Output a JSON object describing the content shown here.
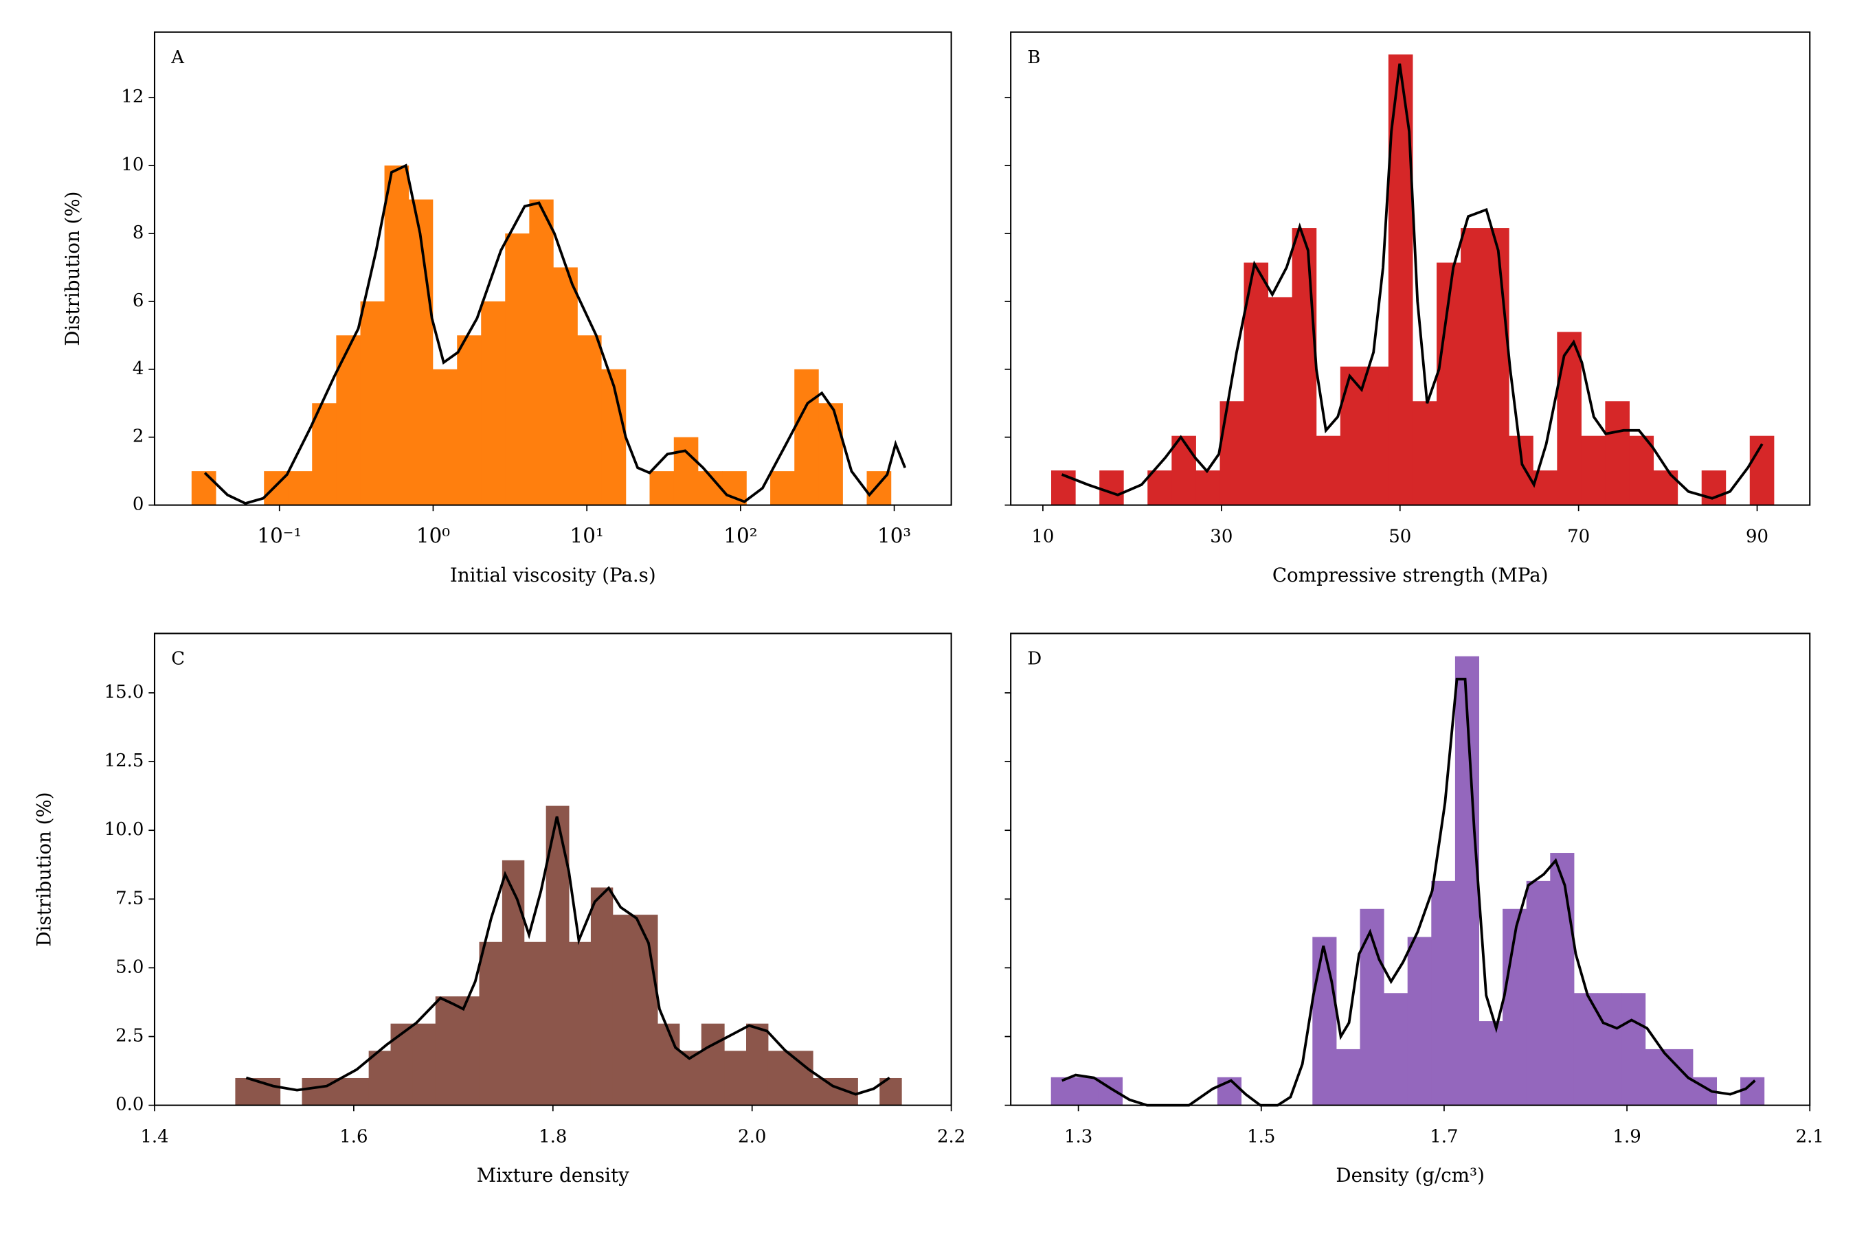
{
  "chart_data": [
    {
      "type": "histogram",
      "panel": "A",
      "xlabel": "Initial viscosity (Pa.s)",
      "ylabel": "Distribution (%)",
      "xscale": "log",
      "color": "#ff7f0e",
      "bins": [
        0.0268,
        0.0385,
        0.0552,
        0.0793,
        0.114,
        0.163,
        0.234,
        0.336,
        0.482,
        0.692,
        0.993,
        1.43,
        2.05,
        2.94,
        4.22,
        6.04,
        8.67,
        12.4,
        17.9,
        25.6,
        36.8,
        52.8,
        75.9,
        109,
        156,
        224,
        321,
        461,
        662,
        951
      ],
      "values": [
        1,
        0,
        0,
        1,
        1,
        3,
        5,
        6,
        10,
        9,
        4,
        5,
        6,
        8,
        9,
        7,
        5,
        4,
        0,
        1,
        2,
        1,
        1,
        0,
        1,
        4,
        3,
        0,
        1
      ],
      "kde": {
        "color": "#000000",
        "x": [
          0.0327,
          0.0459,
          0.06,
          0.0784,
          0.112,
          0.16,
          0.228,
          0.326,
          0.426,
          0.536,
          0.664,
          0.822,
          0.982,
          1.17,
          1.45,
          1.93,
          2.76,
          3.94,
          4.88,
          6.15,
          8.04,
          11.5,
          15.0,
          17.9,
          21.4,
          25.6,
          33.4,
          43.6,
          57.0,
          81.3,
          106,
          139,
          198,
          273,
          338,
          404,
          527,
          689,
          900,
          1020,
          1175
        ],
        "values": [
          0.95,
          0.3,
          0.05,
          0.2,
          0.9,
          2.3,
          3.8,
          5.2,
          7.5,
          9.8,
          10.0,
          8,
          5.5,
          4.2,
          4.5,
          5.5,
          7.5,
          8.8,
          8.9,
          8,
          6.5,
          5,
          3.5,
          2,
          1.1,
          0.95,
          1.5,
          1.6,
          1.1,
          0.3,
          0.1,
          0.5,
          1.8,
          3.0,
          3.3,
          2.8,
          1.0,
          0.3,
          0.9,
          1.8,
          1.1
        ]
      },
      "xlim": [
        0.0154,
        2350
      ],
      "ylim": [
        0,
        13.93
      ],
      "xticks": [
        {
          "value": 0.1,
          "label": "10⁻¹"
        },
        {
          "value": 1,
          "label": "10⁰"
        },
        {
          "value": 10,
          "label": "10¹"
        },
        {
          "value": 100,
          "label": "10²"
        },
        {
          "value": 1000,
          "label": "10³"
        }
      ],
      "yticks": [
        0,
        2,
        4,
        6,
        8,
        10,
        12
      ]
    },
    {
      "type": "histogram",
      "panel": "B",
      "xlabel": "Compressive strength (MPa)",
      "sharey": true,
      "color": "#d62728",
      "bins": [
        10.93,
        13.63,
        16.33,
        19.02,
        21.72,
        24.42,
        27.12,
        29.82,
        32.51,
        35.21,
        37.91,
        40.61,
        43.31,
        46.0,
        48.7,
        51.4,
        54.1,
        56.8,
        59.49,
        62.19,
        64.89,
        67.59,
        70.29,
        72.98,
        75.68,
        78.38,
        81.08,
        83.78,
        86.47,
        89.17,
        91.87
      ],
      "values": [
        1.02,
        0,
        1.02,
        0,
        1.02,
        2.04,
        1.02,
        3.06,
        7.14,
        6.12,
        8.16,
        2.04,
        4.08,
        4.08,
        13.27,
        3.06,
        7.14,
        8.16,
        8.16,
        2.04,
        1.02,
        5.1,
        2.04,
        3.06,
        2.04,
        1.02,
        0,
        1.02,
        0,
        2.04
      ],
      "kde": {
        "color": "#000000",
        "x": [
          12.13,
          15.06,
          18.39,
          21.05,
          23.72,
          25.45,
          27.04,
          28.38,
          29.71,
          31.7,
          33.7,
          35.7,
          37.3,
          38.77,
          39.7,
          40.63,
          41.7,
          43.03,
          44.37,
          45.7,
          47.03,
          48.1,
          49.03,
          49.96,
          51.03,
          51.96,
          53.04,
          54.37,
          55.97,
          57.64,
          59.67,
          61.0,
          62.34,
          63.67,
          65.0,
          66.38,
          68.38,
          69.45,
          70.37,
          71.7,
          73.04,
          75.04,
          76.77,
          78.3,
          80.3,
          82.3,
          84.96,
          86.96,
          88.96,
          90.56
        ],
        "values": [
          0.9,
          0.6,
          0.3,
          0.6,
          1.4,
          2.0,
          1.4,
          1.0,
          1.5,
          4.5,
          7.1,
          6.2,
          7.0,
          8.2,
          7.5,
          4,
          2.2,
          2.6,
          3.8,
          3.4,
          4.5,
          7,
          11,
          13.0,
          11,
          6,
          3,
          4,
          7,
          8.5,
          8.7,
          7.5,
          4,
          1.2,
          0.6,
          1.8,
          4.4,
          4.8,
          4.2,
          2.6,
          2.1,
          2.2,
          2.2,
          1.7,
          0.9,
          0.4,
          0.2,
          0.4,
          1.1,
          1.8
        ]
      },
      "xlim": [
        6.4,
        95.9
      ],
      "ylim": [
        0,
        13.93
      ],
      "xticks": [
        10,
        30,
        50,
        70,
        90
      ],
      "yticks": [
        0,
        2,
        4,
        6,
        8,
        10,
        12
      ]
    },
    {
      "type": "histogram",
      "panel": "C",
      "xlabel": "Mixture density",
      "ylabel": "Distribution (%)",
      "color": "#8c564b",
      "bins": [
        1.481,
        1.503,
        1.526,
        1.548,
        1.57,
        1.592,
        1.615,
        1.637,
        1.659,
        1.682,
        1.704,
        1.726,
        1.749,
        1.771,
        1.793,
        1.816,
        1.838,
        1.86,
        1.882,
        1.905,
        1.927,
        1.949,
        1.972,
        1.994,
        2.016,
        2.039,
        2.061,
        2.083,
        2.106,
        2.128,
        2.15
      ],
      "values": [
        0.99,
        0.99,
        0,
        0.99,
        0.99,
        0.99,
        1.98,
        2.97,
        2.97,
        3.96,
        3.96,
        5.94,
        8.91,
        5.94,
        10.89,
        5.94,
        7.92,
        6.93,
        6.93,
        2.97,
        1.98,
        2.97,
        1.98,
        2.97,
        1.98,
        1.98,
        0.99,
        0.99,
        0,
        0.99
      ],
      "kde": {
        "color": "#000000",
        "x": [
          1.492,
          1.519,
          1.543,
          1.573,
          1.603,
          1.633,
          1.663,
          1.687,
          1.699,
          1.71,
          1.722,
          1.738,
          1.752,
          1.764,
          1.776,
          1.788,
          1.804,
          1.816,
          1.826,
          1.842,
          1.856,
          1.868,
          1.884,
          1.896,
          1.907,
          1.923,
          1.937,
          1.955,
          1.976,
          1.997,
          2.015,
          2.033,
          2.057,
          2.081,
          2.104,
          2.122,
          2.138
        ],
        "values": [
          1.0,
          0.7,
          0.55,
          0.7,
          1.3,
          2.2,
          3.0,
          3.9,
          3.7,
          3.5,
          4.5,
          6.8,
          8.4,
          7.5,
          6.2,
          7.8,
          10.5,
          8.5,
          6.0,
          7.4,
          7.9,
          7.2,
          6.8,
          5.9,
          3.5,
          2.1,
          1.7,
          2.1,
          2.5,
          2.9,
          2.7,
          2.0,
          1.3,
          0.7,
          0.4,
          0.6,
          1.0
        ]
      },
      "xlim": [
        1.4,
        2.2
      ],
      "ylim": [
        0,
        17.16
      ],
      "xticks": [
        1.4,
        1.6,
        1.8,
        {
          "value": 2,
          "label": "2.0"
        },
        2.2
      ],
      "yticks": [
        {
          "value": 0,
          "label": "0.0"
        },
        2.5,
        {
          "value": 5,
          "label": "5.0"
        },
        7.5,
        {
          "value": 10,
          "label": "10.0"
        },
        12.5,
        {
          "value": 15,
          "label": "15.0"
        }
      ]
    },
    {
      "type": "histogram",
      "panel": "D",
      "xlabel": "Density (g/cm³)",
      "sharey": true,
      "color": "#9467bd",
      "bins": [
        1.27,
        1.296,
        1.322,
        1.348,
        1.374,
        1.4,
        1.426,
        1.452,
        1.478,
        1.504,
        1.53,
        1.556,
        1.582,
        1.608,
        1.634,
        1.66,
        1.686,
        1.712,
        1.738,
        1.764,
        1.79,
        1.816,
        1.842,
        1.868,
        1.894,
        1.92,
        1.946,
        1.972,
        1.998,
        2.024,
        2.05
      ],
      "values": [
        1.02,
        1.02,
        1.02,
        0,
        0,
        0,
        0,
        1.02,
        0,
        0,
        0,
        6.12,
        2.04,
        7.14,
        4.08,
        6.12,
        8.16,
        16.33,
        3.06,
        7.14,
        8.16,
        9.18,
        4.08,
        4.08,
        4.08,
        2.04,
        2.04,
        1.02,
        0,
        1.02
      ],
      "kde": {
        "color": "#000000",
        "x": [
          1.282,
          1.297,
          1.317,
          1.336,
          1.356,
          1.375,
          1.421,
          1.447,
          1.467,
          1.483,
          1.499,
          1.518,
          1.532,
          1.545,
          1.557,
          1.568,
          1.577,
          1.587,
          1.596,
          1.607,
          1.619,
          1.629,
          1.642,
          1.655,
          1.671,
          1.687,
          1.701,
          1.714,
          1.723,
          1.733,
          1.746,
          1.757,
          1.766,
          1.779,
          1.792,
          1.809,
          1.822,
          1.832,
          1.844,
          1.857,
          1.874,
          1.889,
          1.905,
          1.922,
          1.941,
          1.967,
          1.993,
          2.013,
          2.03,
          2.04
        ],
        "values": [
          0.9,
          1.1,
          1.0,
          0.6,
          0.2,
          0,
          0,
          0.6,
          0.9,
          0.4,
          0,
          0,
          0.3,
          1.5,
          4,
          5.8,
          4.5,
          2.5,
          3,
          5.5,
          6.3,
          5.3,
          4.5,
          5.2,
          6.3,
          7.8,
          11,
          15.5,
          15.5,
          10,
          4,
          2.8,
          4,
          6.5,
          8.0,
          8.4,
          8.9,
          8.0,
          5.5,
          4,
          3.0,
          2.8,
          3.1,
          2.8,
          1.9,
          1.0,
          0.5,
          0.4,
          0.6,
          0.9
        ]
      },
      "xlim": [
        1.226,
        2.1
      ],
      "ylim": [
        0,
        17.16
      ],
      "xticks": [
        1.3,
        1.5,
        1.7,
        1.9,
        2.1
      ],
      "yticks": [
        0,
        2.5,
        5,
        7.5,
        10,
        12.5,
        15
      ]
    }
  ]
}
